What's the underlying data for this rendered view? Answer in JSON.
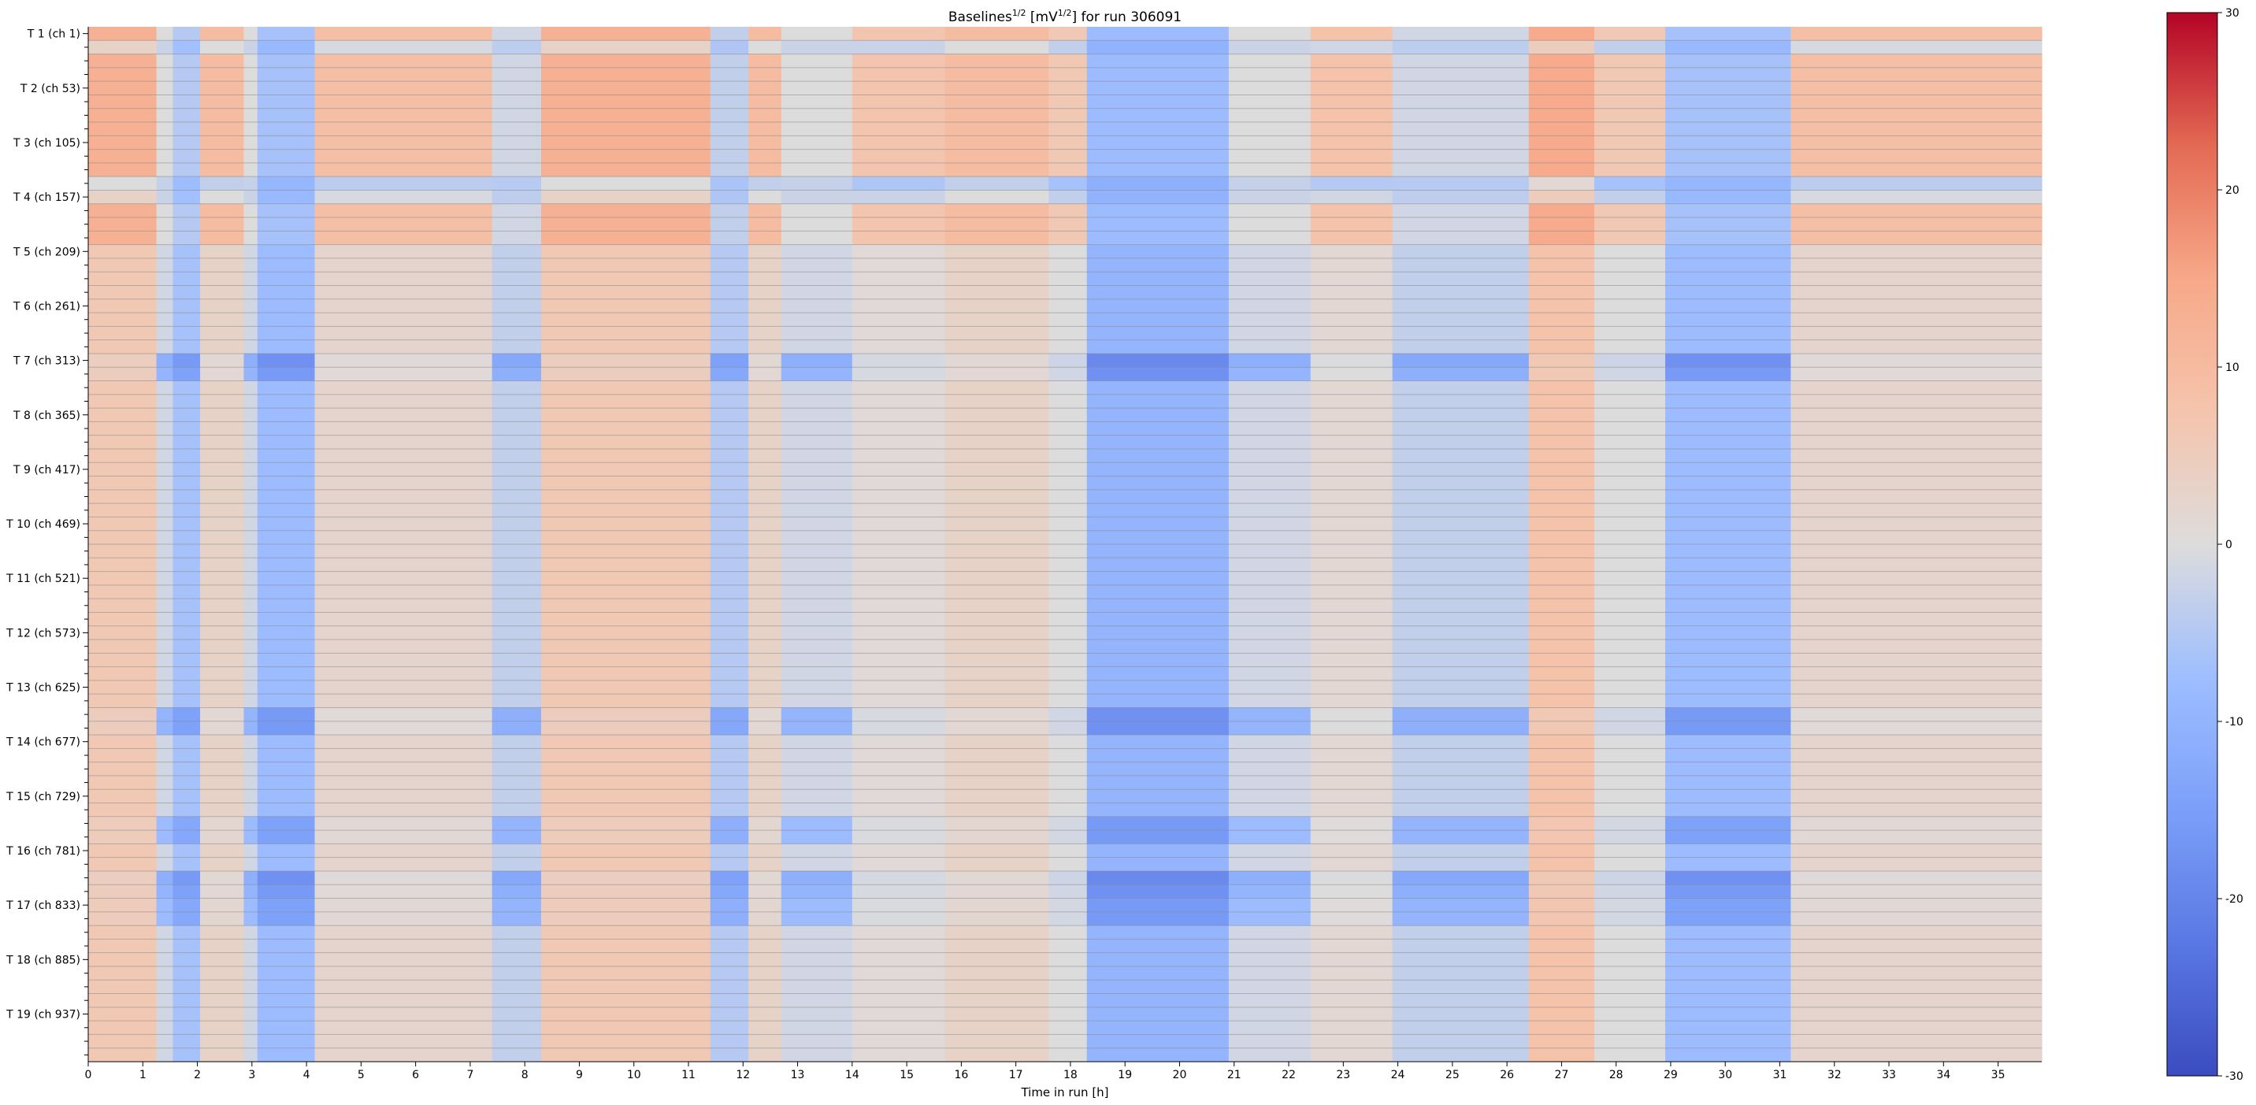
{
  "chart_data": {
    "type": "heatmap",
    "title": "Baselines",
    "title_sup1": "1/2",
    "title_unit_open": " [mV",
    "title_sup2": "1/2",
    "title_rest": "] for run 306091",
    "xlabel": "Time in run [h]",
    "ylabel": "",
    "x_ticks": [
      0,
      1,
      2,
      3,
      4,
      5,
      6,
      7,
      8,
      9,
      10,
      11,
      12,
      13,
      14,
      15,
      16,
      17,
      18,
      19,
      20,
      21,
      22,
      23,
      24,
      25,
      26,
      27,
      28,
      29,
      30,
      31,
      32,
      33,
      34,
      35
    ],
    "xlim": [
      0,
      35.8
    ],
    "y_tick_labels": [
      "T 1 (ch 1)",
      "T 2 (ch 53)",
      "T 3 (ch 105)",
      "T 4 (ch 157)",
      "T 5 (ch 209)",
      "T 6 (ch 261)",
      "T 7 (ch 313)",
      "T 8 (ch 365)",
      "T 9 (ch 417)",
      "T 10 (ch 469)",
      "T 11 (ch 521)",
      "T 12 (ch 573)",
      "T 13 (ch 625)",
      "T 14 (ch 677)",
      "T 15 (ch 729)",
      "T 16 (ch 781)",
      "T 17 (ch 833)",
      "T 18 (ch 885)",
      "T 19 (ch 937)"
    ],
    "rows_per_label": 4,
    "n_rows": 76,
    "colorbar": {
      "colormap": "coolwarm",
      "vmin": -30,
      "vmax": 30,
      "ticks": [
        30,
        20,
        10,
        0,
        -10,
        -20,
        -30
      ]
    },
    "column_profile": [
      {
        "x0": 0.0,
        "x1": 1.25,
        "value": 4
      },
      {
        "x0": 1.25,
        "x1": 1.55,
        "value": -1
      },
      {
        "x0": 1.55,
        "x1": 2.05,
        "value": -4
      },
      {
        "x0": 2.05,
        "x1": 2.85,
        "value": 2
      },
      {
        "x0": 2.85,
        "x1": 3.1,
        "value": -1
      },
      {
        "x0": 3.1,
        "x1": 4.15,
        "value": -5
      },
      {
        "x0": 4.15,
        "x1": 7.4,
        "value": 1.5
      },
      {
        "x0": 7.4,
        "x1": 8.3,
        "value": -2
      },
      {
        "x0": 8.3,
        "x1": 11.4,
        "value": 4
      },
      {
        "x0": 11.4,
        "x1": 12.1,
        "value": -3
      },
      {
        "x0": 12.1,
        "x1": 12.7,
        "value": 2
      },
      {
        "x0": 12.7,
        "x1": 14.0,
        "value": -1
      },
      {
        "x0": 14.0,
        "x1": 15.7,
        "value": 0.5
      },
      {
        "x0": 15.7,
        "x1": 17.6,
        "value": 2
      },
      {
        "x0": 17.6,
        "x1": 18.3,
        "value": 0
      },
      {
        "x0": 18.3,
        "x1": 20.9,
        "value": -6
      },
      {
        "x0": 20.9,
        "x1": 22.4,
        "value": -1
      },
      {
        "x0": 22.4,
        "x1": 23.9,
        "value": 1
      },
      {
        "x0": 23.9,
        "x1": 26.4,
        "value": -2
      },
      {
        "x0": 26.4,
        "x1": 27.6,
        "value": 5
      },
      {
        "x0": 27.6,
        "x1": 28.9,
        "value": 0
      },
      {
        "x0": 28.9,
        "x1": 31.2,
        "value": -5
      },
      {
        "x0": 31.2,
        "x1": 35.8,
        "value": 1.5
      }
    ],
    "row_band_profile": [
      {
        "from": 0,
        "to": 16,
        "offset": 4
      },
      {
        "from": 16,
        "to": 76,
        "offset": 0
      }
    ],
    "highlight_rows": [
      {
        "row": 1,
        "offset": -6
      },
      {
        "row": 11,
        "offset": -8
      },
      {
        "row": 12,
        "offset": -6
      },
      {
        "row": 24,
        "offset": -6
      },
      {
        "row": 25,
        "offset": -5
      },
      {
        "row": 50,
        "offset": -5
      },
      {
        "row": 51,
        "offset": -5
      },
      {
        "row": 58,
        "offset": -4
      },
      {
        "row": 59,
        "offset": -4
      },
      {
        "row": 62,
        "offset": -6
      },
      {
        "row": 63,
        "offset": -5
      },
      {
        "row": 64,
        "offset": -4
      },
      {
        "row": 65,
        "offset": -4
      }
    ]
  }
}
